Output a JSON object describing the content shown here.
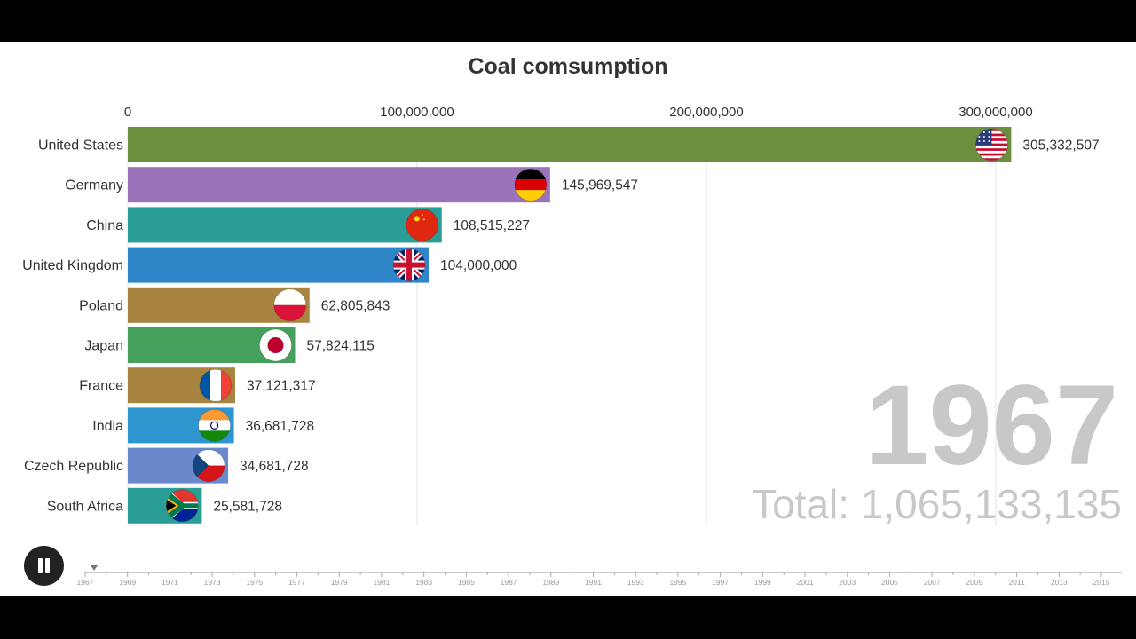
{
  "chart_data": {
    "type": "bar",
    "orientation": "horizontal",
    "title": "Coal comsumption",
    "x_ticks": [
      0,
      100000000,
      200000000,
      300000000
    ],
    "x_tick_labels": [
      "0",
      "100,000,000",
      "200,000,000",
      "300,000,000"
    ],
    "grid": true,
    "categories": [
      "United States",
      "Germany",
      "China",
      "United Kingdom",
      "Poland",
      "Japan",
      "France",
      "India",
      "Czech Republic",
      "South Africa"
    ],
    "values": [
      305332507,
      145969547,
      108515227,
      104000000,
      62805843,
      57824115,
      37121317,
      36681728,
      34681728,
      25581728
    ],
    "value_labels": [
      "305,332,507",
      "145,969,547",
      "108,515,227",
      "104,000,000",
      "62,805,843",
      "57,824,115",
      "37,121,317",
      "36,681,728",
      "34,681,728",
      "25,581,728"
    ],
    "colors": [
      "#6b8e3f",
      "#9b73bb",
      "#2a9e96",
      "#2f86c8",
      "#a98440",
      "#45a05c",
      "#a98440",
      "#2f95cf",
      "#6a89cc",
      "#2a9e96"
    ],
    "flags": [
      "us-flag-icon",
      "germany-flag-icon",
      "china-flag-icon",
      "uk-flag-icon",
      "poland-flag-icon",
      "japan-flag-icon",
      "france-flag-icon",
      "india-flag-icon",
      "czech-flag-icon",
      "south-africa-flag-icon"
    ],
    "year": "1967",
    "total_label": "Total: 1,065,133,135"
  },
  "timeline": {
    "years": [
      "1967",
      "1969",
      "1971",
      "1973",
      "1975",
      "1977",
      "1979",
      "1981",
      "1983",
      "1985",
      "1987",
      "1989",
      "1991",
      "1993",
      "1995",
      "1997",
      "1999",
      "2001",
      "2003",
      "2005",
      "2007",
      "2009",
      "2011",
      "2013",
      "2015"
    ],
    "current": "1967"
  },
  "controls": {
    "play_state": "playing",
    "pause_icon": "pause-icon"
  }
}
